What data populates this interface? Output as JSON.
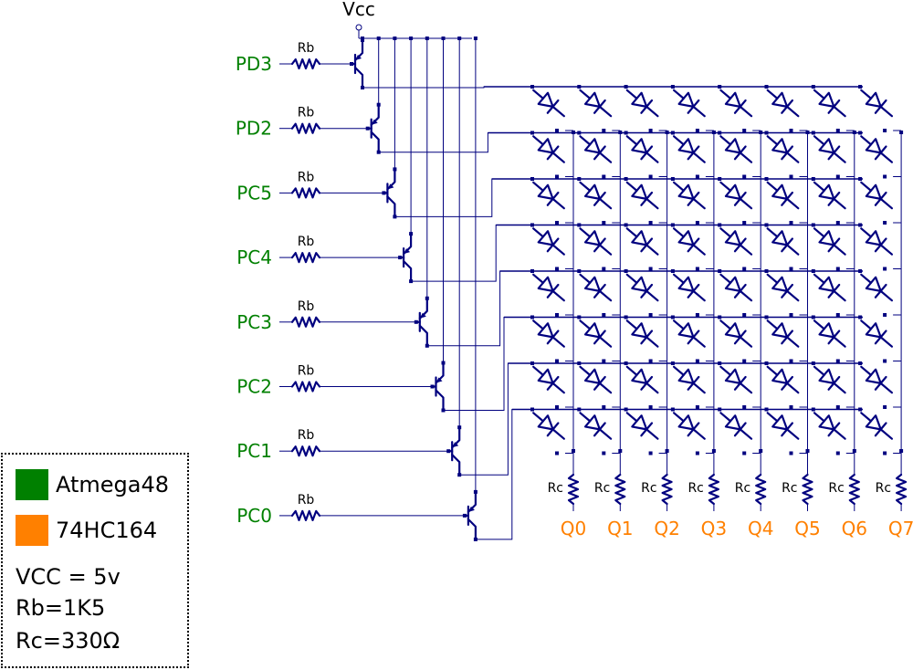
{
  "vcc_label": "Vcc",
  "row_inputs": [
    "PD3",
    "PD2",
    "PC5",
    "PC4",
    "PC3",
    "PC2",
    "PC1",
    "PC0"
  ],
  "rb_label": "Rb",
  "rc_label": "Rc",
  "col_outputs": [
    "Q0",
    "Q1",
    "Q2",
    "Q3",
    "Q4",
    "Q5",
    "Q6",
    "Q7"
  ],
  "colors": {
    "wire": "#00007f",
    "atmega": "#008000",
    "hc164": "#ff8000"
  },
  "legend": {
    "atmega_label": "Atmega48",
    "hc164_label": "74HC164",
    "vcc_text": "VCC = 5v",
    "rb_text": "Rb=1K5",
    "rc_text": "Rc=330Ω"
  }
}
